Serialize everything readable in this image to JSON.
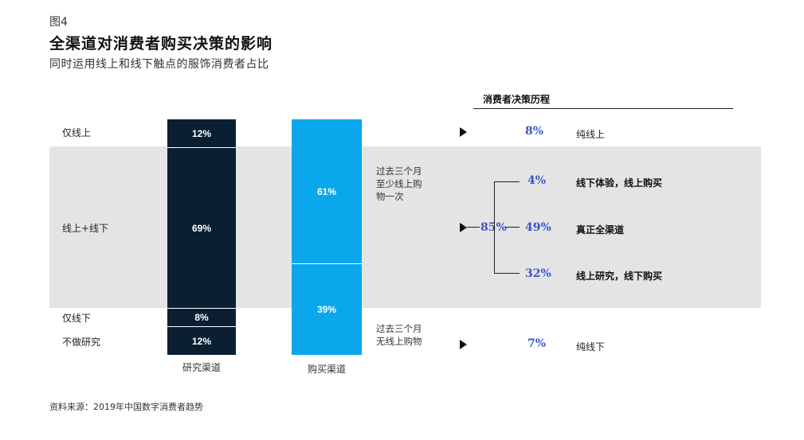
{
  "header": {
    "figure_label": "图4",
    "title": "全渠道对消费者购买决策的影响",
    "subtitle": "同时运用线上和线下触点的服饰消费者占比"
  },
  "row_labels": [
    "仅线上",
    "线上+线下",
    "仅线下",
    "不做研究"
  ],
  "notes": {
    "past3_online": "过去三个月\n至少线上购\n物一次",
    "past3_none": "过去三个月\n无线上购物"
  },
  "journey": {
    "title": "消费者决策历程",
    "items": [
      {
        "pct": "8%",
        "label": "纯线上"
      },
      {
        "pct": "85%",
        "label": ""
      },
      {
        "pct": "4%",
        "label": "线下体验，线上购买"
      },
      {
        "pct": "49%",
        "label": "真正全渠道"
      },
      {
        "pct": "32%",
        "label": "线上研究，线下购买"
      },
      {
        "pct": "7%",
        "label": "纯线下"
      }
    ]
  },
  "source": "资料来源：2019年中国数字消费者趋势",
  "colors": {
    "research_bar": "#0b1f33",
    "purchase_bar": "#0ba7ec",
    "band": "#e4e4e4",
    "journey_pct": "#3a55c9"
  },
  "chart_data": {
    "type": "bar",
    "stacked": true,
    "bars": [
      {
        "name": "研究渠道",
        "segments": [
          {
            "label": "仅线上",
            "value": 12,
            "text": "12%"
          },
          {
            "label": "线上+线下",
            "value": 69,
            "text": "69%"
          },
          {
            "label": "仅线下",
            "value": 8,
            "text": "8%"
          },
          {
            "label": "不做研究",
            "value": 12,
            "text": "12%"
          }
        ]
      },
      {
        "name": "购买渠道",
        "segments": [
          {
            "label": "至少线上购物一次",
            "value": 61,
            "text": "61%"
          },
          {
            "label": "无线上购物",
            "value": 39,
            "text": "39%"
          }
        ]
      }
    ]
  }
}
